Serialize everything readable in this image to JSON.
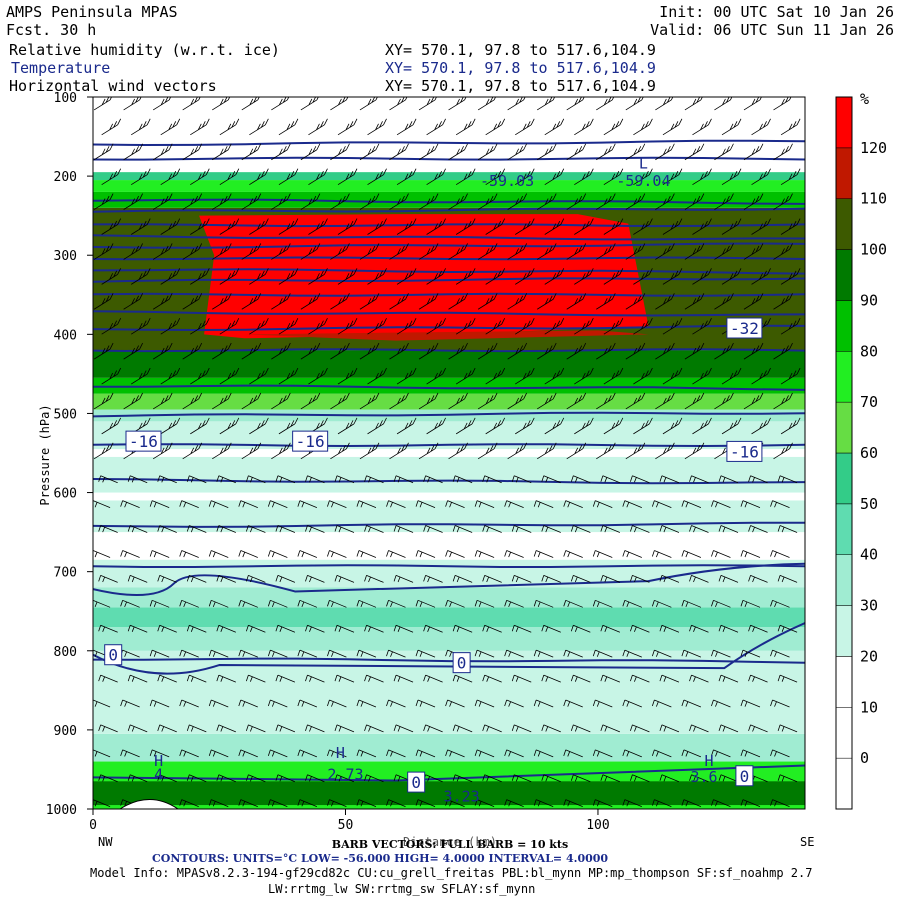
{
  "header": {
    "model": "AMPS Peninsula MPAS",
    "fcst": "Fcst.   30 h",
    "init": "Init: 00 UTC Sat 10 Jan 26",
    "valid": "Valid: 06 UTC Sun 11 Jan 26",
    "fields": [
      {
        "name": "Relative humidity (w.r.t. ice)",
        "xy": "XY= 570.1, 97.8 to 517.6,104.9",
        "color": "#000000"
      },
      {
        "name": "Temperature",
        "xy": "XY= 570.1, 97.8 to 517.6,104.9",
        "color": "#1a2a8c"
      },
      {
        "name": "Horizontal wind vectors",
        "xy": "XY= 570.1, 97.8 to 517.6,104.9",
        "color": "#000000"
      }
    ]
  },
  "footer": {
    "barb": "BARB VECTORS:  FULL BARB = 10 kts",
    "distance": "Distance (km)",
    "contours": "CONTOURS:  UNITS=°C  LOW= -56.000       HIGH=  4.0000        INTERVAL=   4.0000",
    "model_info_1": "Model Info: MPASv8.2.3-194-gf29cd82c CU:cu_grell_freitas PBL:bl_mynn MP:mp_thompson SF:sf_noahmp 2.7",
    "model_info_2": "LW:rrtmg_lw SW:rrtmg_sw SFLAY:sf_mynn",
    "left_end": "NW",
    "right_end": "SE"
  },
  "chart_data": {
    "type": "cross-section",
    "x_label": "Distance (km)",
    "y_label": "Pressure (hPa)",
    "xlim": [
      0,
      141
    ],
    "ylim": [
      1000,
      100
    ],
    "x_ticks": [
      0,
      50,
      100
    ],
    "y_ticks": [
      100,
      200,
      300,
      400,
      500,
      600,
      700,
      800,
      900,
      1000
    ],
    "colorbar": {
      "unit": "%",
      "levels": [
        0,
        10,
        20,
        30,
        40,
        50,
        60,
        70,
        80,
        90,
        100,
        110,
        120
      ],
      "colors": [
        "#ffffff",
        "#ffffff",
        "#ffffff",
        "#c8f5e6",
        "#a0ecd2",
        "#5fdcb0",
        "#33cc88",
        "#66dd44",
        "#22ee22",
        "#00c000",
        "#007a00",
        "#3d5a00",
        "#c01800",
        "#ff0000"
      ]
    },
    "temperature_contour_labels": [
      {
        "x": 10,
        "p": 535,
        "label": "-16"
      },
      {
        "x": 43,
        "p": 535,
        "label": "-16"
      },
      {
        "x": 129,
        "p": 548,
        "label": "-16"
      },
      {
        "x": 129,
        "p": 392,
        "label": "-32"
      },
      {
        "x": 4,
        "p": 805,
        "label": "0"
      },
      {
        "x": 73,
        "p": 815,
        "label": "0"
      },
      {
        "x": 129,
        "p": 958,
        "label": "0"
      },
      {
        "x": 64,
        "p": 966,
        "label": "0"
      }
    ],
    "extrema": [
      {
        "x": 82,
        "p": 205,
        "label": "-59.03"
      },
      {
        "x": 109,
        "p": 205,
        "label": "-59.04"
      },
      {
        "x": 13,
        "p": 955,
        "label": "4"
      },
      {
        "x": 50,
        "p": 955,
        "label": "2.73"
      },
      {
        "x": 73,
        "p": 983,
        "label": "3.23"
      },
      {
        "x": 121,
        "p": 958,
        "label": "3.6"
      }
    ],
    "hl_marks": [
      {
        "x": 109,
        "p": 183,
        "label": "L"
      },
      {
        "x": 13,
        "p": 938,
        "label": "H"
      },
      {
        "x": 49,
        "p": 928,
        "label": "H"
      },
      {
        "x": 122,
        "p": 938,
        "label": "H"
      }
    ]
  }
}
